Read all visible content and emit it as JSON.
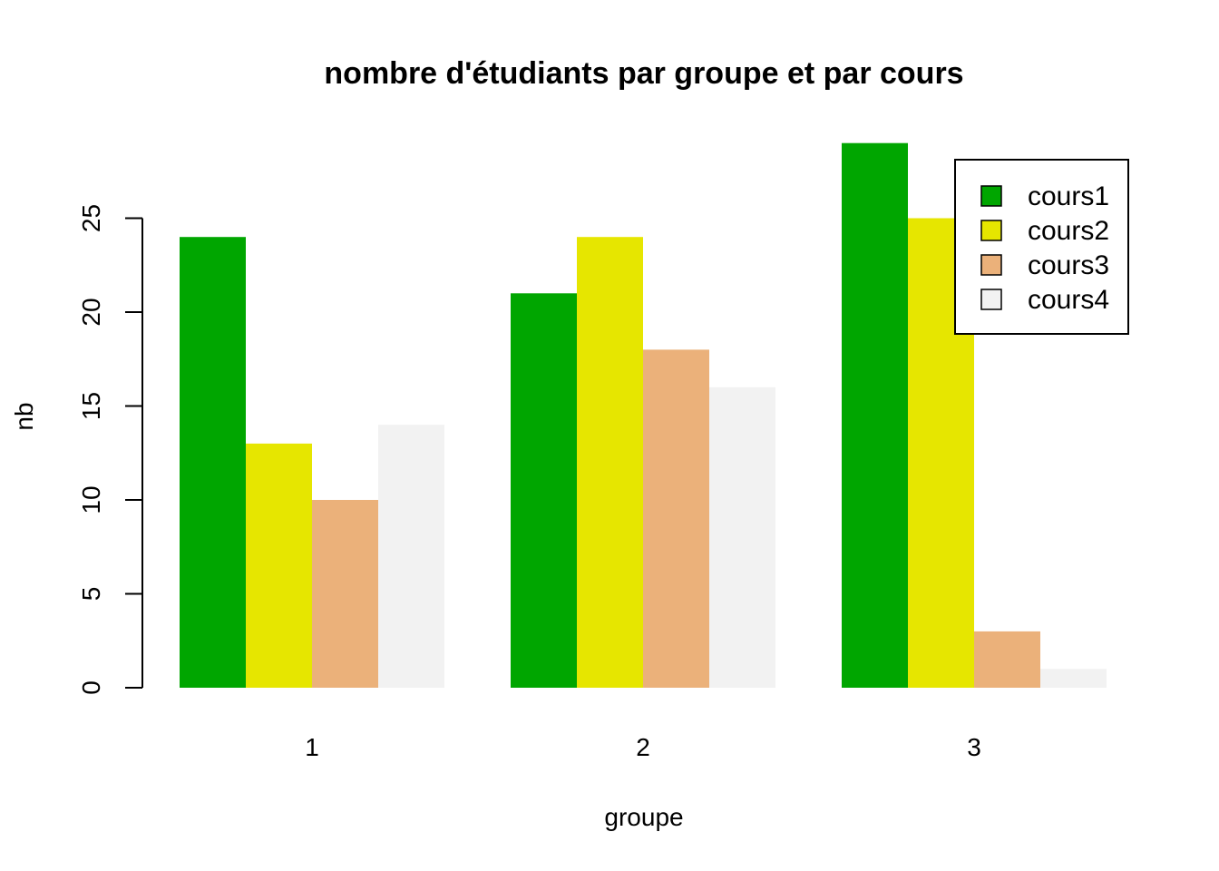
{
  "chart_data": {
    "type": "bar",
    "title": "nombre d'étudiants par groupe et par cours",
    "xlabel": "groupe",
    "ylabel": "nb",
    "categories": [
      "1",
      "2",
      "3"
    ],
    "series": [
      {
        "name": "cours1",
        "color": "#00A600",
        "values": [
          24,
          21,
          29
        ]
      },
      {
        "name": "cours2",
        "color": "#E6E600",
        "values": [
          13,
          24,
          25
        ]
      },
      {
        "name": "cours3",
        "color": "#EBB17A",
        "values": [
          10,
          18,
          3
        ]
      },
      {
        "name": "cours4",
        "color": "#F2F2F2",
        "values": [
          14,
          16,
          1
        ]
      }
    ],
    "yticks": [
      0,
      5,
      10,
      15,
      20,
      25
    ],
    "ylim": [
      0,
      29
    ],
    "grid": false,
    "legend_position": "top-right"
  }
}
